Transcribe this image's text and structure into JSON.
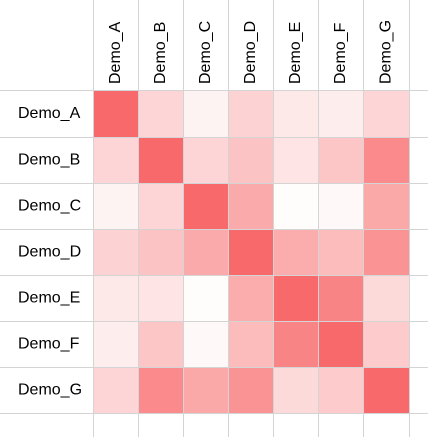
{
  "chart_data": {
    "type": "heatmap",
    "title": "",
    "xlabel": "",
    "ylabel": "",
    "column_labels": [
      "Demo_A",
      "Demo_B",
      "Demo_C",
      "Demo_D",
      "Demo_E",
      "Demo_F",
      "Demo_G"
    ],
    "row_labels": [
      "Demo_A",
      "Demo_B",
      "Demo_C",
      "Demo_D",
      "Demo_E",
      "Demo_F",
      "Demo_G"
    ],
    "values": [
      [
        1.0,
        0.28,
        0.08,
        0.3,
        0.15,
        0.12,
        0.28
      ],
      [
        0.28,
        1.0,
        0.28,
        0.4,
        0.18,
        0.38,
        0.78
      ],
      [
        0.08,
        0.28,
        1.0,
        0.57,
        0.02,
        0.05,
        0.58
      ],
      [
        0.3,
        0.4,
        0.57,
        1.0,
        0.55,
        0.45,
        0.72
      ],
      [
        0.15,
        0.18,
        0.02,
        0.55,
        1.0,
        0.82,
        0.25
      ],
      [
        0.12,
        0.38,
        0.05,
        0.45,
        0.82,
        1.0,
        0.35
      ],
      [
        0.28,
        0.78,
        0.58,
        0.72,
        0.25,
        0.35,
        1.0
      ]
    ],
    "color_scale": {
      "low": "#ffffff",
      "high": "#f8696b"
    },
    "grid": true,
    "legend": "none"
  }
}
